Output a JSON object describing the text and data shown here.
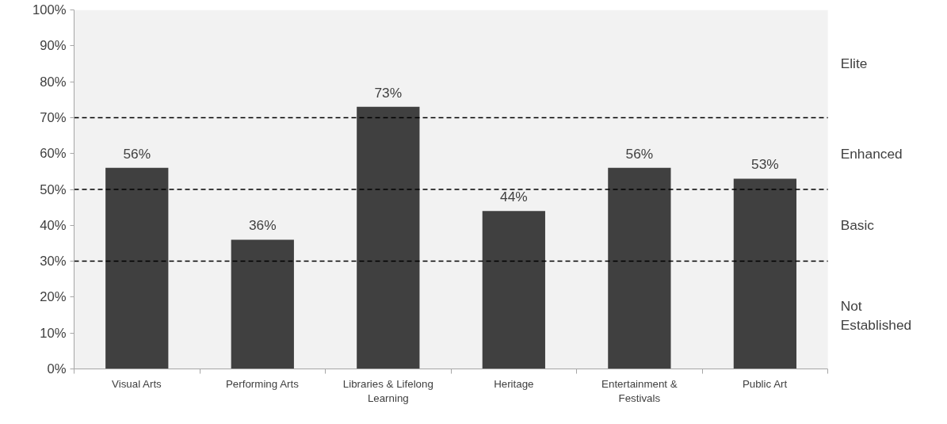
{
  "chart_data": {
    "type": "bar",
    "categories": [
      "Visual Arts",
      "Performing Arts",
      "Libraries & Lifelong Learning",
      "Heritage",
      "Entertainment & Festivals",
      "Public Art"
    ],
    "values": [
      56,
      36,
      73,
      44,
      56,
      53
    ],
    "value_labels": [
      "56%",
      "36%",
      "73%",
      "44%",
      "56%",
      "53%"
    ],
    "color": "#404040",
    "ylim": [
      0,
      100
    ],
    "yticks": [
      {
        "value": 0,
        "label": "0%"
      },
      {
        "value": 10,
        "label": "10%"
      },
      {
        "value": 20,
        "label": "20%"
      },
      {
        "value": 30,
        "label": "30%"
      },
      {
        "value": 40,
        "label": "40%"
      },
      {
        "value": 50,
        "label": "50%"
      },
      {
        "value": 60,
        "label": "60%"
      },
      {
        "value": 70,
        "label": "70%"
      },
      {
        "value": 80,
        "label": "80%"
      },
      {
        "value": 90,
        "label": "90%"
      },
      {
        "value": 100,
        "label": "100%"
      }
    ],
    "ref_lines": [
      {
        "axis": "y",
        "value": 30,
        "line_style": "dashed",
        "color": "#000000"
      },
      {
        "axis": "y",
        "value": 50,
        "line_style": "dashed",
        "color": "#000000"
      },
      {
        "axis": "y",
        "value": 70,
        "line_style": "dashed",
        "color": "#000000"
      }
    ],
    "annotations": [
      "Not Established",
      "Basic",
      "Enhanced",
      "Elite"
    ],
    "grid": false
  }
}
